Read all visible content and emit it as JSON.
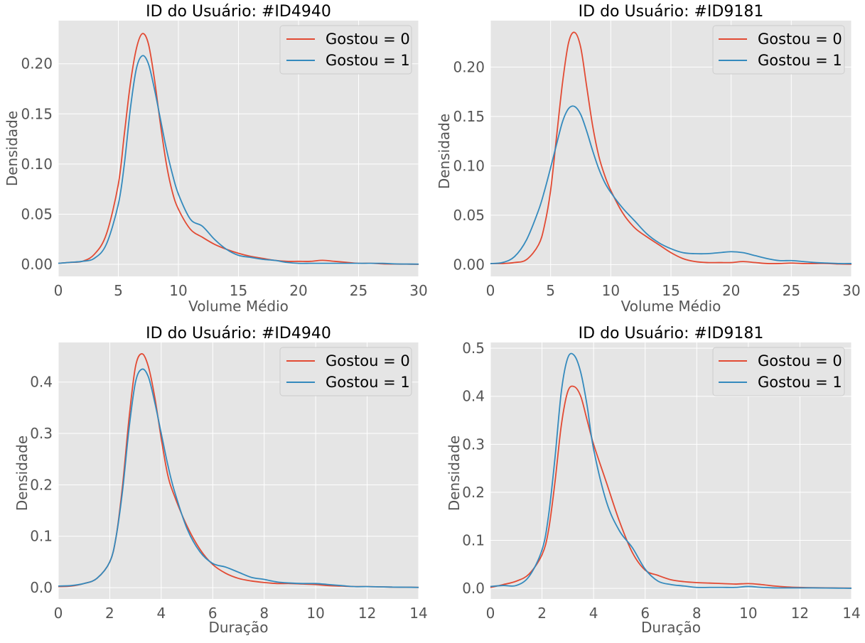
{
  "chart_data": [
    {
      "type": "line",
      "title": "ID do Usuário: #ID4940",
      "xlabel": "Volume Médio",
      "ylabel": "Densidade",
      "xlim": [
        0,
        30
      ],
      "ylim": [
        -0.012,
        0.243
      ],
      "xticks": [
        0,
        5,
        10,
        15,
        20,
        25,
        30
      ],
      "yticks": [
        0.0,
        0.05,
        0.1,
        0.15,
        0.2
      ],
      "ytick_labels": [
        "0.00",
        "0.05",
        "0.10",
        "0.15",
        "0.20"
      ],
      "grid": true,
      "legend_position": "top-right",
      "series": [
        {
          "name": "Gostou = 0",
          "color": "#E24A33",
          "x": [
            0,
            1,
            2,
            3,
            4,
            5,
            5.5,
            6,
            6.5,
            7,
            7.5,
            8,
            8.5,
            9,
            9.5,
            10,
            11,
            12,
            13,
            14,
            15,
            16,
            17,
            18,
            19,
            20,
            21,
            22,
            23,
            24,
            25,
            26,
            27,
            28,
            29,
            30
          ],
          "y": [
            0.001,
            0.002,
            0.003,
            0.01,
            0.03,
            0.08,
            0.13,
            0.18,
            0.215,
            0.23,
            0.22,
            0.185,
            0.14,
            0.1,
            0.072,
            0.055,
            0.035,
            0.027,
            0.02,
            0.015,
            0.011,
            0.008,
            0.006,
            0.004,
            0.003,
            0.003,
            0.003,
            0.004,
            0.003,
            0.002,
            0.001,
            0.001,
            0.0005,
            0.0003,
            0.0002,
            0.0001
          ]
        },
        {
          "name": "Gostou = 1",
          "color": "#348ABD",
          "x": [
            0,
            1,
            2,
            3,
            4,
            5,
            5.5,
            6,
            6.5,
            7,
            7.5,
            8,
            8.5,
            9,
            9.5,
            10,
            11,
            12,
            13,
            14,
            15,
            16,
            17,
            18,
            19,
            20,
            21,
            22,
            23,
            24,
            25,
            26,
            27,
            28,
            29,
            30
          ],
          "y": [
            0.001,
            0.002,
            0.003,
            0.006,
            0.02,
            0.06,
            0.1,
            0.155,
            0.195,
            0.208,
            0.2,
            0.175,
            0.145,
            0.115,
            0.09,
            0.07,
            0.045,
            0.038,
            0.025,
            0.015,
            0.009,
            0.007,
            0.005,
            0.004,
            0.002,
            0.001,
            0.001,
            0.001,
            0.001,
            0.001,
            0.001,
            0.001,
            0.001,
            0.0005,
            0.0003,
            0.0002
          ]
        }
      ]
    },
    {
      "type": "line",
      "title": "ID do Usuário: #ID9181",
      "xlabel": "Volume Médio",
      "ylabel": "Densidade",
      "xlim": [
        0,
        30
      ],
      "ylim": [
        -0.012,
        0.247
      ],
      "xticks": [
        0,
        5,
        10,
        15,
        20,
        25,
        30
      ],
      "yticks": [
        0.0,
        0.05,
        0.1,
        0.15,
        0.2
      ],
      "ytick_labels": [
        "0.00",
        "0.05",
        "0.10",
        "0.15",
        "0.20"
      ],
      "grid": true,
      "legend_position": "top-right",
      "series": [
        {
          "name": "Gostou = 0",
          "color": "#E24A33",
          "x": [
            0,
            1,
            2,
            3,
            4,
            4.5,
            5,
            5.5,
            6,
            6.5,
            7,
            7.5,
            8,
            8.5,
            9,
            9.5,
            10,
            11,
            12,
            13,
            14,
            15,
            16,
            17,
            18,
            19,
            20,
            21,
            22,
            23,
            24,
            25,
            26,
            27,
            28,
            29,
            30
          ],
          "y": [
            0.001,
            0.001,
            0.002,
            0.005,
            0.02,
            0.04,
            0.075,
            0.13,
            0.185,
            0.225,
            0.235,
            0.22,
            0.18,
            0.14,
            0.11,
            0.09,
            0.075,
            0.052,
            0.037,
            0.028,
            0.02,
            0.012,
            0.006,
            0.003,
            0.002,
            0.002,
            0.002,
            0.003,
            0.002,
            0.001,
            0.001,
            0.0015,
            0.001,
            0.001,
            0.001,
            0.0005,
            0.0003
          ]
        },
        {
          "name": "Gostou = 1",
          "color": "#348ABD",
          "x": [
            0,
            1,
            2,
            3,
            4,
            4.5,
            5,
            5.5,
            6,
            6.5,
            7,
            7.5,
            8,
            8.5,
            9,
            9.5,
            10,
            11,
            12,
            13,
            14,
            15,
            16,
            17,
            18,
            19,
            20,
            21,
            22,
            23,
            24,
            25,
            26,
            27,
            28,
            29,
            30
          ],
          "y": [
            0.001,
            0.002,
            0.008,
            0.025,
            0.055,
            0.075,
            0.098,
            0.122,
            0.145,
            0.158,
            0.16,
            0.152,
            0.135,
            0.115,
            0.097,
            0.083,
            0.073,
            0.057,
            0.044,
            0.031,
            0.022,
            0.016,
            0.012,
            0.011,
            0.011,
            0.012,
            0.013,
            0.012,
            0.009,
            0.006,
            0.004,
            0.004,
            0.003,
            0.002,
            0.0015,
            0.001,
            0.001
          ]
        }
      ]
    },
    {
      "type": "line",
      "title": "ID do Usuário: #ID4940",
      "xlabel": "Duração",
      "ylabel": "Densidade",
      "xlim": [
        0,
        14
      ],
      "ylim": [
        -0.022,
        0.477
      ],
      "xticks": [
        0,
        2,
        4,
        6,
        8,
        10,
        12,
        14
      ],
      "yticks": [
        0.0,
        0.1,
        0.2,
        0.3,
        0.4
      ],
      "ytick_labels": [
        "0.0",
        "0.1",
        "0.2",
        "0.3",
        "0.4"
      ],
      "grid": true,
      "legend_position": "top-right",
      "series": [
        {
          "name": "Gostou = 0",
          "color": "#E24A33",
          "x": [
            0,
            0.5,
            1,
            1.5,
            2,
            2.25,
            2.5,
            2.75,
            3,
            3.25,
            3.5,
            3.75,
            4,
            4.25,
            4.5,
            5,
            5.5,
            6,
            6.5,
            7,
            7.5,
            8,
            8.5,
            9,
            9.5,
            10,
            10.5,
            11,
            11.5,
            12,
            12.5,
            13,
            13.5,
            14
          ],
          "y": [
            0.002,
            0.003,
            0.008,
            0.018,
            0.05,
            0.1,
            0.2,
            0.33,
            0.43,
            0.455,
            0.43,
            0.37,
            0.29,
            0.22,
            0.18,
            0.12,
            0.075,
            0.045,
            0.028,
            0.018,
            0.013,
            0.01,
            0.008,
            0.008,
            0.007,
            0.006,
            0.004,
            0.003,
            0.002,
            0.002,
            0.0015,
            0.001,
            0.0008,
            0.0005
          ]
        },
        {
          "name": "Gostou = 1",
          "color": "#348ABD",
          "x": [
            0,
            0.5,
            1,
            1.5,
            2,
            2.25,
            2.5,
            2.75,
            3,
            3.25,
            3.5,
            3.75,
            4,
            4.25,
            4.5,
            5,
            5.5,
            6,
            6.5,
            7,
            7.5,
            8,
            8.5,
            9,
            9.5,
            10,
            10.5,
            11,
            11.5,
            12,
            12.5,
            13,
            13.5,
            14
          ],
          "y": [
            0.003,
            0.004,
            0.008,
            0.018,
            0.05,
            0.1,
            0.19,
            0.31,
            0.4,
            0.425,
            0.41,
            0.36,
            0.3,
            0.24,
            0.19,
            0.115,
            0.07,
            0.047,
            0.04,
            0.03,
            0.02,
            0.016,
            0.011,
            0.009,
            0.008,
            0.008,
            0.006,
            0.004,
            0.002,
            0.002,
            0.0015,
            0.001,
            0.0008,
            0.0005
          ]
        }
      ]
    },
    {
      "type": "line",
      "title": "ID do Usuário: #ID9181",
      "xlabel": "Duração",
      "ylabel": "Densidade",
      "xlim": [
        0,
        14
      ],
      "ylim": [
        -0.022,
        0.512
      ],
      "xticks": [
        0,
        2,
        4,
        6,
        8,
        10,
        12,
        14
      ],
      "yticks": [
        0.0,
        0.1,
        0.2,
        0.3,
        0.4,
        0.5
      ],
      "ytick_labels": [
        "0.0",
        "0.1",
        "0.2",
        "0.3",
        "0.4",
        "0.5"
      ],
      "grid": true,
      "legend_position": "top-right",
      "series": [
        {
          "name": "Gostou = 0",
          "color": "#E24A33",
          "x": [
            0,
            0.5,
            1,
            1.5,
            2,
            2.25,
            2.5,
            2.75,
            3,
            3.25,
            3.5,
            3.75,
            4,
            4.5,
            5,
            5.5,
            6,
            6.5,
            7,
            7.5,
            8,
            8.5,
            9,
            9.5,
            10,
            10.5,
            11,
            11.5,
            12,
            12.5,
            13,
            13.5,
            14
          ],
          "y": [
            0.002,
            0.008,
            0.015,
            0.03,
            0.07,
            0.12,
            0.22,
            0.34,
            0.41,
            0.42,
            0.4,
            0.35,
            0.3,
            0.22,
            0.14,
            0.075,
            0.038,
            0.027,
            0.018,
            0.014,
            0.012,
            0.011,
            0.01,
            0.009,
            0.01,
            0.008,
            0.005,
            0.003,
            0.002,
            0.0015,
            0.001,
            0.0008,
            0.0005
          ]
        },
        {
          "name": "Gostou = 1",
          "color": "#348ABD",
          "x": [
            0,
            0.5,
            1,
            1.5,
            2,
            2.25,
            2.5,
            2.75,
            3,
            3.25,
            3.5,
            3.75,
            4,
            4.5,
            5,
            5.5,
            6,
            6.5,
            7,
            7.5,
            8,
            8.5,
            9,
            9.5,
            10,
            10.5,
            11,
            11.5,
            12,
            12.5,
            13,
            13.5,
            14
          ],
          "y": [
            0.004,
            0.006,
            0.006,
            0.025,
            0.08,
            0.15,
            0.27,
            0.41,
            0.48,
            0.485,
            0.45,
            0.38,
            0.29,
            0.18,
            0.12,
            0.085,
            0.04,
            0.015,
            0.008,
            0.005,
            0.002,
            0.002,
            0.002,
            0.002,
            0.004,
            0.002,
            0.001,
            0.001,
            0.001,
            0.001,
            0.0008,
            0.0005,
            0.0003
          ]
        }
      ]
    }
  ]
}
